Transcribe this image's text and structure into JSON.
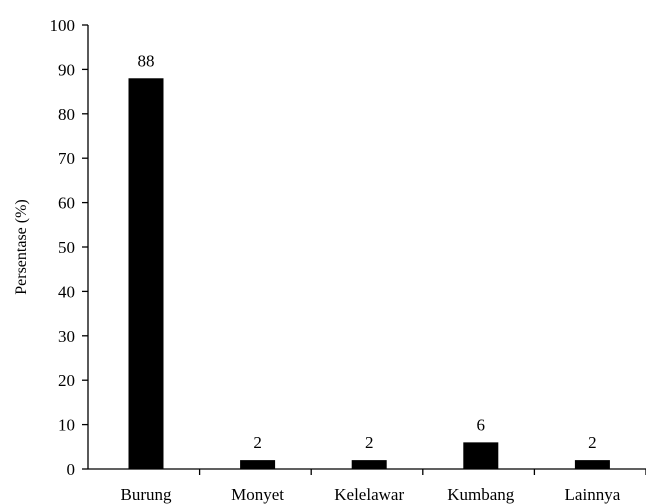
{
  "chart_data": {
    "type": "bar",
    "title": "",
    "xlabel": "",
    "ylabel": "Persentase (%)",
    "categories": [
      "Burung",
      "Monyet",
      "Kelelawar",
      "Kumbang",
      "Lainnya"
    ],
    "values": [
      88,
      2,
      2,
      6,
      2
    ],
    "data_labels": [
      "88",
      "2",
      "2",
      "6",
      "2"
    ],
    "ylim": [
      0,
      100
    ],
    "yticks": [
      0,
      10,
      20,
      30,
      40,
      50,
      60,
      70,
      80,
      90,
      100
    ],
    "grid": false,
    "legend": "none",
    "colors": {
      "bar": "#000000",
      "axis": "#000000",
      "background": "#ffffff"
    }
  }
}
